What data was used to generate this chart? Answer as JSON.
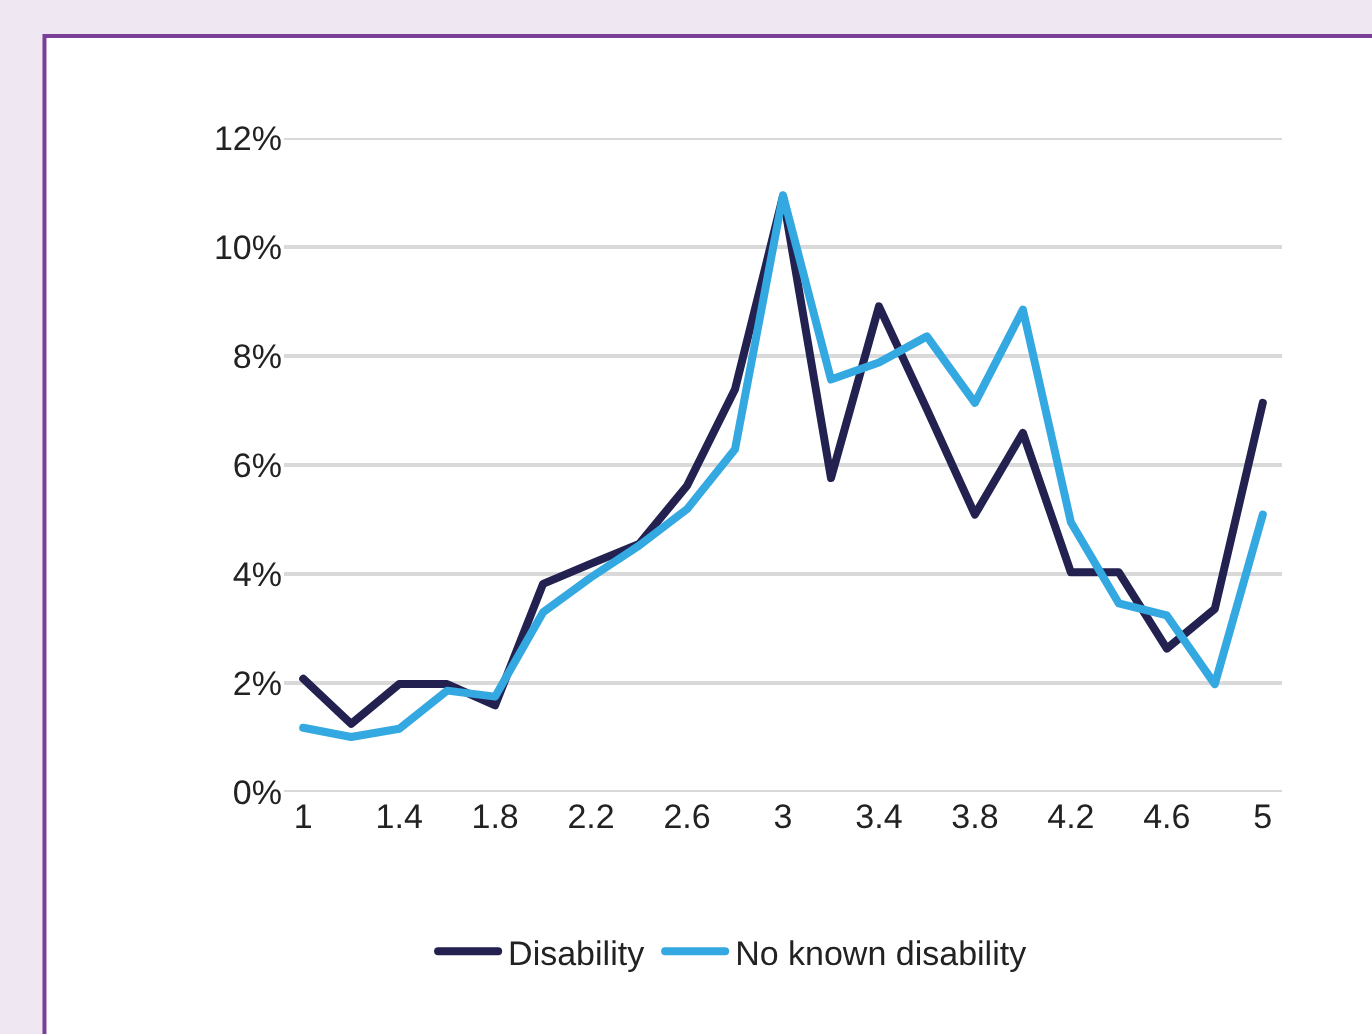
{
  "chart_data": {
    "type": "line",
    "categories": [
      "1",
      null,
      "1.4",
      null,
      "1.8",
      null,
      "2.2",
      null,
      "2.6",
      null,
      "3",
      null,
      "3.4",
      null,
      "3.8",
      null,
      "4.2",
      null,
      "4.6",
      null,
      "5"
    ],
    "series": [
      {
        "name": "Disability",
        "color": "#22214f",
        "values": [
          2.08,
          1.25,
          1.98,
          1.98,
          1.59,
          3.82,
          4.19,
          4.55,
          5.62,
          7.39,
          10.93,
          5.76,
          8.91,
          7.02,
          5.09,
          6.59,
          4.03,
          4.03,
          2.63,
          3.36,
          7.14
        ]
      },
      {
        "name": "No known disability",
        "color": "#34a8e0",
        "values": [
          1.18,
          1.01,
          1.16,
          1.86,
          1.75,
          3.3,
          3.94,
          4.52,
          5.19,
          6.29,
          10.95,
          7.57,
          7.88,
          8.36,
          7.14,
          8.85,
          4.95,
          3.46,
          3.24,
          1.98,
          5.09
        ]
      }
    ],
    "ylim": [
      0,
      12
    ],
    "yticks": [
      {
        "value": 0,
        "label": "0%"
      },
      {
        "value": 2,
        "label": "2%"
      },
      {
        "value": 4,
        "label": "4%"
      },
      {
        "value": 6,
        "label": "6%"
      },
      {
        "value": 8,
        "label": "8%"
      },
      {
        "value": 10,
        "label": "10%"
      },
      {
        "value": 12,
        "label": "12%"
      }
    ],
    "grid": "y",
    "legend": "bottom",
    "marker": "none",
    "line_style": "solid"
  }
}
